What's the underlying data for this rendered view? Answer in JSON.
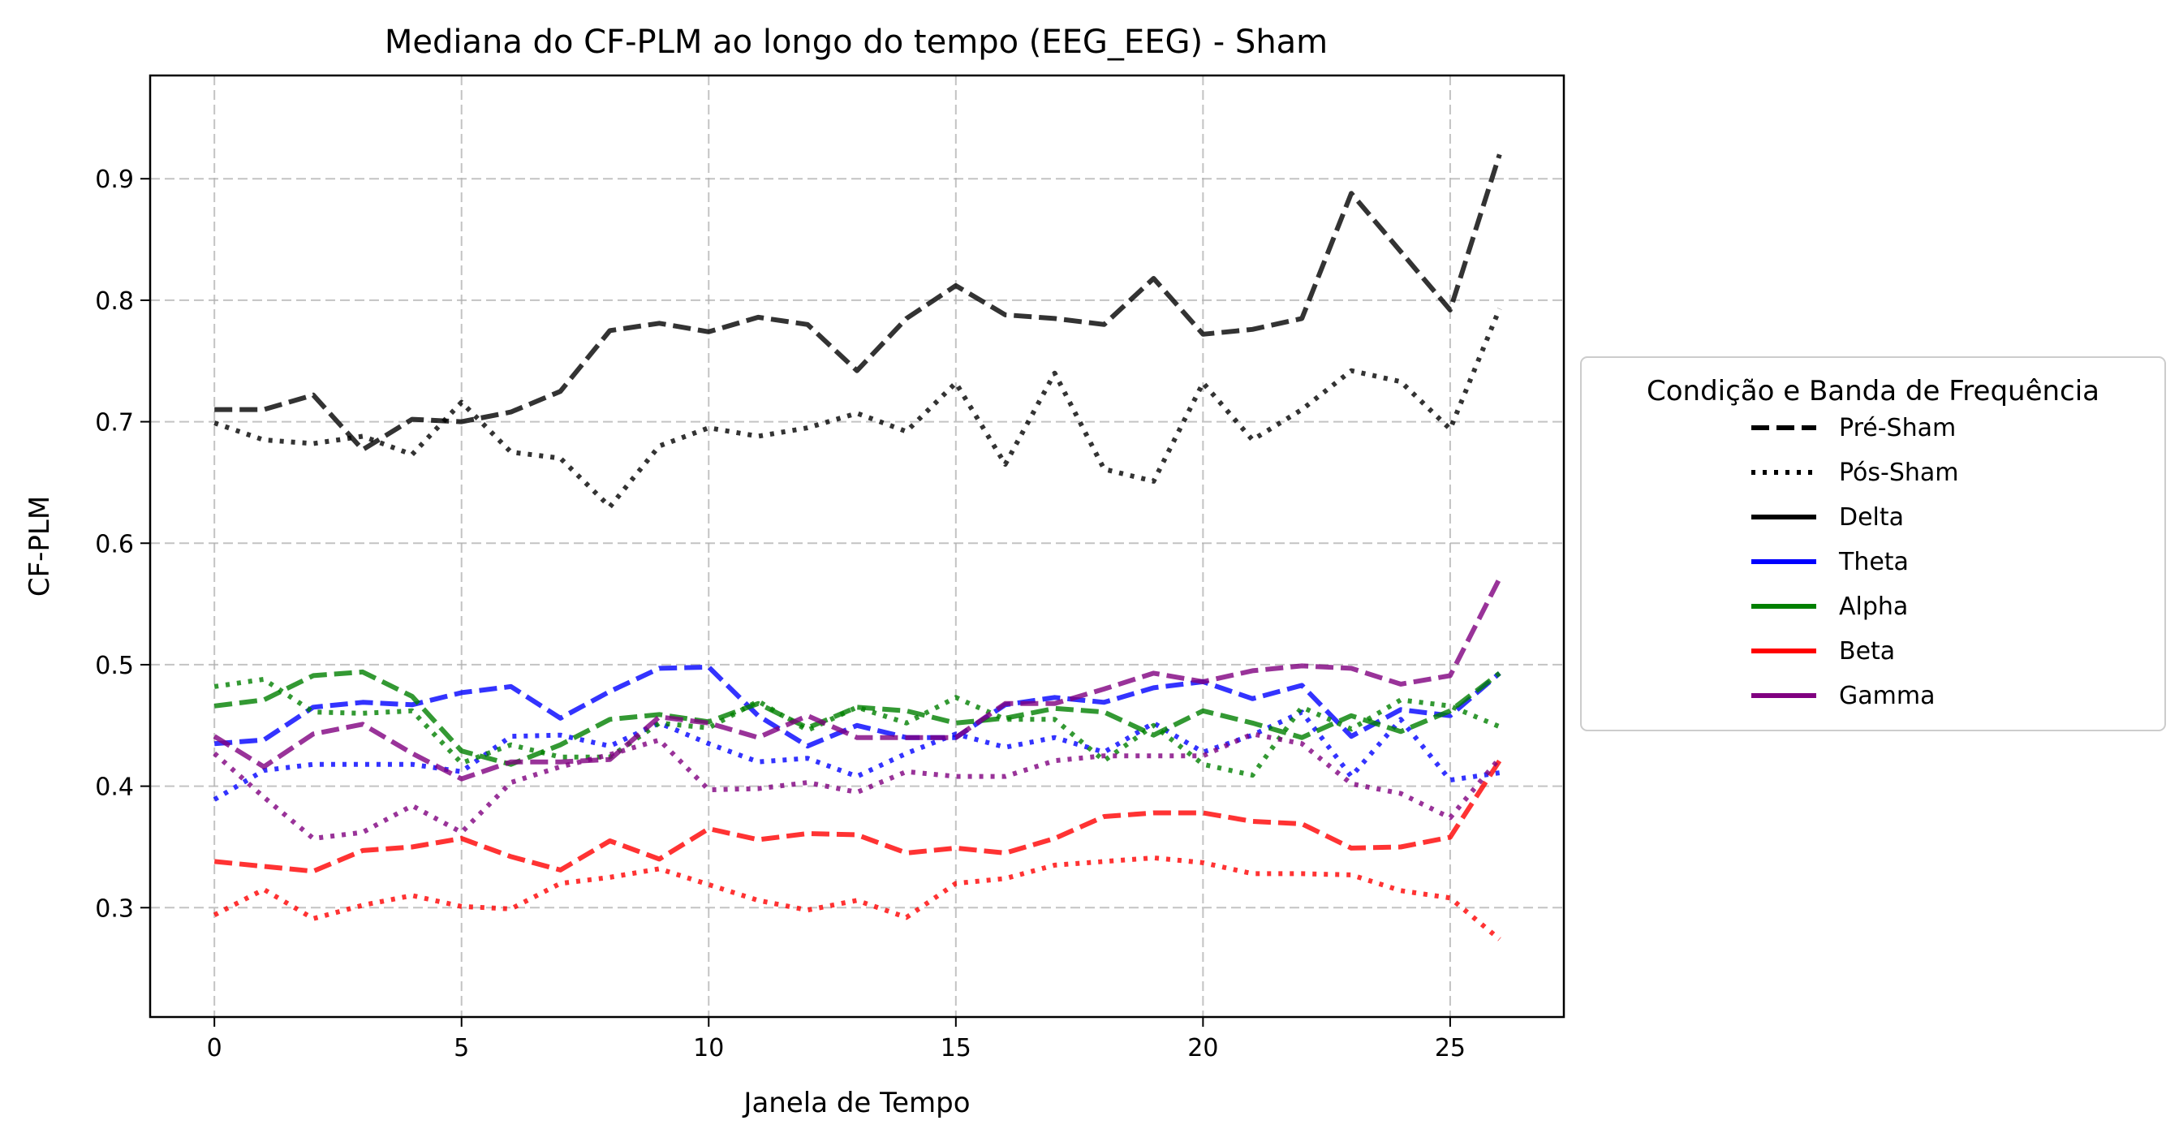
{
  "chart_data": {
    "type": "line",
    "title": "Mediana do CF-PLM ao longo do tempo (EEG_EEG) - Sham",
    "xlabel": "Janela de Tempo",
    "ylabel": "CF-PLM",
    "xlim": [
      -1.3,
      27.3
    ],
    "ylim": [
      0.21,
      0.985
    ],
    "xticks": [
      0,
      5,
      10,
      15,
      20,
      25
    ],
    "yticks": [
      0.3,
      0.4,
      0.5,
      0.6,
      0.7,
      0.8,
      0.9
    ],
    "ytick_labels": [
      "0.3",
      "0.4",
      "0.5",
      "0.6",
      "0.7",
      "0.8",
      "0.9"
    ],
    "grid": true,
    "legend": {
      "title": "Condição e Banda de Frequência",
      "placement": "outside-right",
      "styles": [
        {
          "label": "Pré-Sham",
          "dash": "dashed"
        },
        {
          "label": "Pós-Sham",
          "dash": "dotted"
        }
      ],
      "bands": [
        {
          "label": "Delta",
          "color": "#000000"
        },
        {
          "label": "Theta",
          "color": "#0000ff"
        },
        {
          "label": "Alpha",
          "color": "#008000"
        },
        {
          "label": "Beta",
          "color": "#ff0000"
        },
        {
          "label": "Gamma",
          "color": "#800080"
        }
      ]
    },
    "x": [
      0,
      1,
      2,
      3,
      4,
      5,
      6,
      7,
      8,
      9,
      10,
      11,
      12,
      13,
      14,
      15,
      16,
      17,
      18,
      19,
      20,
      21,
      22,
      23,
      24,
      25,
      26
    ],
    "series": [
      {
        "band": "Delta",
        "condition": "Pré-Sham",
        "color": "#000000",
        "values": [
          0.71,
          0.71,
          0.722,
          0.677,
          0.702,
          0.7,
          0.708,
          0.725,
          0.775,
          0.781,
          0.774,
          0.786,
          0.78,
          0.742,
          0.785,
          0.812,
          0.788,
          0.785,
          0.78,
          0.818,
          0.772,
          0.776,
          0.785,
          0.888,
          0.84,
          0.792,
          0.92
        ]
      },
      {
        "band": "Delta",
        "condition": "Pós-Sham",
        "color": "#000000",
        "values": [
          0.699,
          0.685,
          0.682,
          0.688,
          0.673,
          0.716,
          0.675,
          0.67,
          0.63,
          0.68,
          0.695,
          0.688,
          0.695,
          0.707,
          0.692,
          0.732,
          0.665,
          0.74,
          0.661,
          0.651,
          0.732,
          0.685,
          0.71,
          0.742,
          0.733,
          0.694,
          0.793
        ]
      },
      {
        "band": "Theta",
        "condition": "Pré-Sham",
        "color": "#0000ff",
        "values": [
          0.435,
          0.438,
          0.465,
          0.469,
          0.467,
          0.477,
          0.482,
          0.456,
          0.478,
          0.497,
          0.498,
          0.458,
          0.433,
          0.45,
          0.44,
          0.44,
          0.467,
          0.473,
          0.469,
          0.481,
          0.486,
          0.472,
          0.483,
          0.441,
          0.463,
          0.458,
          0.493
        ]
      },
      {
        "band": "Theta",
        "condition": "Pós-Sham",
        "color": "#0000ff",
        "values": [
          0.389,
          0.413,
          0.418,
          0.418,
          0.418,
          0.412,
          0.441,
          0.442,
          0.433,
          0.452,
          0.435,
          0.42,
          0.423,
          0.408,
          0.427,
          0.443,
          0.432,
          0.44,
          0.428,
          0.452,
          0.428,
          0.442,
          0.461,
          0.408,
          0.455,
          0.405,
          0.411
        ]
      },
      {
        "band": "Alpha",
        "condition": "Pré-Sham",
        "color": "#008000",
        "values": [
          0.466,
          0.471,
          0.491,
          0.494,
          0.474,
          0.429,
          0.418,
          0.434,
          0.455,
          0.459,
          0.453,
          0.468,
          0.448,
          0.465,
          0.462,
          0.452,
          0.456,
          0.464,
          0.461,
          0.442,
          0.462,
          0.452,
          0.44,
          0.458,
          0.445,
          0.462,
          0.493
        ]
      },
      {
        "band": "Alpha",
        "condition": "Pós-Sham",
        "color": "#008000",
        "values": [
          0.482,
          0.488,
          0.461,
          0.46,
          0.462,
          0.419,
          0.434,
          0.424,
          0.424,
          0.452,
          0.448,
          0.47,
          0.446,
          0.465,
          0.452,
          0.473,
          0.455,
          0.455,
          0.421,
          0.45,
          0.418,
          0.409,
          0.465,
          0.447,
          0.471,
          0.466,
          0.449
        ]
      },
      {
        "band": "Beta",
        "condition": "Pré-Sham",
        "color": "#ff0000",
        "values": [
          0.338,
          0.334,
          0.33,
          0.347,
          0.35,
          0.357,
          0.342,
          0.331,
          0.355,
          0.34,
          0.365,
          0.356,
          0.361,
          0.36,
          0.345,
          0.349,
          0.345,
          0.357,
          0.375,
          0.378,
          0.378,
          0.371,
          0.369,
          0.349,
          0.35,
          0.358,
          0.421
        ]
      },
      {
        "band": "Beta",
        "condition": "Pós-Sham",
        "color": "#ff0000",
        "values": [
          0.294,
          0.315,
          0.291,
          0.302,
          0.31,
          0.301,
          0.299,
          0.32,
          0.325,
          0.332,
          0.319,
          0.306,
          0.298,
          0.306,
          0.292,
          0.32,
          0.324,
          0.335,
          0.338,
          0.341,
          0.337,
          0.328,
          0.328,
          0.327,
          0.314,
          0.308,
          0.274
        ]
      },
      {
        "band": "Gamma",
        "condition": "Pré-Sham",
        "color": "#800080",
        "values": [
          0.441,
          0.416,
          0.443,
          0.451,
          0.427,
          0.406,
          0.42,
          0.42,
          0.422,
          0.457,
          0.452,
          0.44,
          0.458,
          0.44,
          0.44,
          0.44,
          0.468,
          0.468,
          0.48,
          0.493,
          0.486,
          0.495,
          0.499,
          0.497,
          0.484,
          0.491,
          0.571
        ]
      },
      {
        "band": "Gamma",
        "condition": "Pós-Sham",
        "color": "#800080",
        "values": [
          0.427,
          0.391,
          0.357,
          0.362,
          0.384,
          0.362,
          0.403,
          0.416,
          0.426,
          0.438,
          0.397,
          0.398,
          0.403,
          0.395,
          0.412,
          0.408,
          0.408,
          0.421,
          0.425,
          0.425,
          0.425,
          0.443,
          0.435,
          0.402,
          0.394,
          0.374,
          0.423
        ]
      }
    ]
  }
}
